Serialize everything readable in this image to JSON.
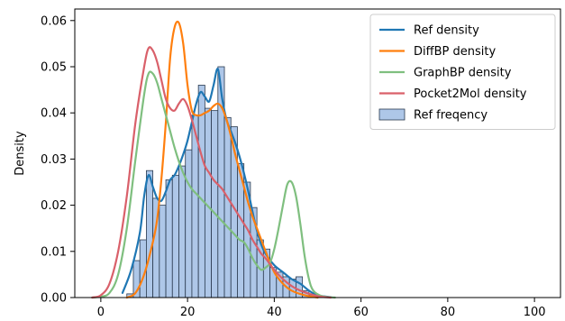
{
  "chart_data": {
    "type": "bar",
    "xlabel": "",
    "ylabel": "Density",
    "xlim": [
      -6,
      106
    ],
    "ylim": [
      0,
      0.0625
    ],
    "x_ticks": [
      0,
      20,
      40,
      60,
      80,
      100
    ],
    "y_ticks": [
      0.0,
      0.01,
      0.02,
      0.03,
      0.04,
      0.05,
      0.06
    ],
    "legend_position": "top-right",
    "histogram": {
      "name": "Ref freqency",
      "color": "#aec7e8",
      "edge_color": "#2a3a4f",
      "bins": [
        [
          6,
          7.5,
          0.0008
        ],
        [
          7.5,
          9,
          0.008
        ],
        [
          9,
          10.5,
          0.0125
        ],
        [
          10.5,
          12,
          0.0275
        ],
        [
          12,
          13.5,
          0.0215
        ],
        [
          13.5,
          15,
          0.02
        ],
        [
          15,
          16.5,
          0.0255
        ],
        [
          16.5,
          18,
          0.0265
        ],
        [
          18,
          19.5,
          0.0285
        ],
        [
          19.5,
          21,
          0.032
        ],
        [
          21,
          22.5,
          0.0395
        ],
        [
          22.5,
          24,
          0.046
        ],
        [
          24,
          25.5,
          0.041
        ],
        [
          25.5,
          27,
          0.0405
        ],
        [
          27,
          28.5,
          0.05
        ],
        [
          28.5,
          30,
          0.039
        ],
        [
          30,
          31.5,
          0.037
        ],
        [
          31.5,
          33,
          0.029
        ],
        [
          33,
          34.5,
          0.025
        ],
        [
          34.5,
          36,
          0.0195
        ],
        [
          36,
          37.5,
          0.0125
        ],
        [
          37.5,
          39,
          0.0105
        ],
        [
          39,
          40.5,
          0.0065
        ],
        [
          40.5,
          42,
          0.0055
        ],
        [
          42,
          43.5,
          0.0045
        ],
        [
          43.5,
          45,
          0.004
        ],
        [
          45,
          46.5,
          0.0045
        ],
        [
          46.5,
          48,
          0.0015
        ],
        [
          48,
          49.5,
          0.0005
        ]
      ]
    },
    "series": [
      {
        "name": "Ref density",
        "color": "#1f77b4",
        "points": [
          [
            5,
            0.001
          ],
          [
            7,
            0.006
          ],
          [
            9,
            0.014
          ],
          [
            10,
            0.022
          ],
          [
            11,
            0.0265
          ],
          [
            12,
            0.024
          ],
          [
            13,
            0.0215
          ],
          [
            14,
            0.021
          ],
          [
            15,
            0.023
          ],
          [
            16,
            0.0255
          ],
          [
            17,
            0.0265
          ],
          [
            18,
            0.0285
          ],
          [
            19,
            0.031
          ],
          [
            20,
            0.034
          ],
          [
            21,
            0.038
          ],
          [
            22,
            0.042
          ],
          [
            23,
            0.0445
          ],
          [
            24,
            0.0435
          ],
          [
            25,
            0.0425
          ],
          [
            26,
            0.046
          ],
          [
            27,
            0.0495
          ],
          [
            28,
            0.043
          ],
          [
            29,
            0.0385
          ],
          [
            30,
            0.036
          ],
          [
            31,
            0.0335
          ],
          [
            32,
            0.0305
          ],
          [
            33,
            0.027
          ],
          [
            34,
            0.023
          ],
          [
            35,
            0.0185
          ],
          [
            36,
            0.0145
          ],
          [
            37,
            0.0115
          ],
          [
            38,
            0.0095
          ],
          [
            40,
            0.007
          ],
          [
            42,
            0.0055
          ],
          [
            44,
            0.004
          ],
          [
            46,
            0.003
          ],
          [
            48,
            0.0015
          ],
          [
            50,
            0.0005
          ],
          [
            53,
            0.0001
          ]
        ]
      },
      {
        "name": "DiffBP density",
        "color": "#ff7f0e",
        "points": [
          [
            6,
            0.0
          ],
          [
            8,
            0.001
          ],
          [
            10,
            0.005
          ],
          [
            12,
            0.012
          ],
          [
            13,
            0.017
          ],
          [
            14,
            0.026
          ],
          [
            15,
            0.038
          ],
          [
            16,
            0.052
          ],
          [
            17,
            0.0585
          ],
          [
            18,
            0.0595
          ],
          [
            19,
            0.055
          ],
          [
            20,
            0.046
          ],
          [
            21,
            0.0405
          ],
          [
            22,
            0.0395
          ],
          [
            23,
            0.0395
          ],
          [
            24,
            0.04
          ],
          [
            25,
            0.0405
          ],
          [
            26,
            0.0415
          ],
          [
            27,
            0.042
          ],
          [
            28,
            0.041
          ],
          [
            29,
            0.0385
          ],
          [
            30,
            0.035
          ],
          [
            31,
            0.031
          ],
          [
            32,
            0.0275
          ],
          [
            33,
            0.024
          ],
          [
            34,
            0.0205
          ],
          [
            35,
            0.0175
          ],
          [
            36,
            0.015
          ],
          [
            37,
            0.0125
          ],
          [
            38,
            0.01
          ],
          [
            40,
            0.0055
          ],
          [
            42,
            0.003
          ],
          [
            44,
            0.0015
          ],
          [
            47,
            0.0005
          ],
          [
            50,
            0.0
          ]
        ]
      },
      {
        "name": "GraphBP density",
        "color": "#7fbf7f",
        "points": [
          [
            -2,
            0.0
          ],
          [
            0,
            0.0002
          ],
          [
            2,
            0.001
          ],
          [
            4,
            0.005
          ],
          [
            6,
            0.015
          ],
          [
            8,
            0.03
          ],
          [
            10,
            0.044
          ],
          [
            11,
            0.0485
          ],
          [
            12,
            0.0485
          ],
          [
            13,
            0.0465
          ],
          [
            14,
            0.043
          ],
          [
            15,
            0.0395
          ],
          [
            16,
            0.036
          ],
          [
            17,
            0.0325
          ],
          [
            18,
            0.0295
          ],
          [
            19,
            0.027
          ],
          [
            20,
            0.025
          ],
          [
            21,
            0.0235
          ],
          [
            22,
            0.0225
          ],
          [
            23,
            0.0215
          ],
          [
            24,
            0.0205
          ],
          [
            25,
            0.0195
          ],
          [
            26,
            0.0185
          ],
          [
            27,
            0.0175
          ],
          [
            28,
            0.0165
          ],
          [
            29,
            0.0155
          ],
          [
            30,
            0.0145
          ],
          [
            31,
            0.0135
          ],
          [
            32,
            0.0125
          ],
          [
            33,
            0.012
          ],
          [
            34,
            0.0105
          ],
          [
            35,
            0.0085
          ],
          [
            36,
            0.007
          ],
          [
            37,
            0.006
          ],
          [
            38,
            0.0065
          ],
          [
            39,
            0.0075
          ],
          [
            40,
            0.0105
          ],
          [
            41,
            0.015
          ],
          [
            42,
            0.02
          ],
          [
            43,
            0.0245
          ],
          [
            44,
            0.025
          ],
          [
            45,
            0.022
          ],
          [
            46,
            0.016
          ],
          [
            47,
            0.009
          ],
          [
            48,
            0.004
          ],
          [
            49,
            0.0015
          ],
          [
            51,
            0.0003
          ],
          [
            54,
            0.0
          ]
        ]
      },
      {
        "name": "Pocket2Mol density",
        "color": "#d9606a",
        "points": [
          [
            -2,
            0.0
          ],
          [
            0,
            0.0005
          ],
          [
            2,
            0.003
          ],
          [
            4,
            0.01
          ],
          [
            6,
            0.022
          ],
          [
            8,
            0.038
          ],
          [
            10,
            0.05
          ],
          [
            11,
            0.054
          ],
          [
            12,
            0.0535
          ],
          [
            13,
            0.051
          ],
          [
            14,
            0.047
          ],
          [
            15,
            0.043
          ],
          [
            16,
            0.041
          ],
          [
            17,
            0.0405
          ],
          [
            18,
            0.042
          ],
          [
            19,
            0.043
          ],
          [
            20,
            0.0415
          ],
          [
            21,
            0.0385
          ],
          [
            22,
            0.035
          ],
          [
            23,
            0.0315
          ],
          [
            24,
            0.0285
          ],
          [
            25,
            0.027
          ],
          [
            26,
            0.0255
          ],
          [
            27,
            0.0245
          ],
          [
            28,
            0.0235
          ],
          [
            29,
            0.022
          ],
          [
            30,
            0.0205
          ],
          [
            31,
            0.019
          ],
          [
            32,
            0.0175
          ],
          [
            33,
            0.016
          ],
          [
            34,
            0.0145
          ],
          [
            35,
            0.0125
          ],
          [
            36,
            0.011
          ],
          [
            37,
            0.0095
          ],
          [
            38,
            0.0085
          ],
          [
            40,
            0.006
          ],
          [
            42,
            0.004
          ],
          [
            44,
            0.0025
          ],
          [
            46,
            0.0015
          ],
          [
            50,
            0.0003
          ],
          [
            53,
            0.0
          ]
        ]
      }
    ],
    "legend": {
      "entries": [
        {
          "label": "Ref density",
          "kind": "line",
          "color": "#1f77b4"
        },
        {
          "label": "DiffBP density",
          "kind": "line",
          "color": "#ff7f0e"
        },
        {
          "label": "GraphBP density",
          "kind": "line",
          "color": "#7fbf7f"
        },
        {
          "label": "Pocket2Mol density",
          "kind": "line",
          "color": "#d9606a"
        },
        {
          "label": "Ref freqency",
          "kind": "patch",
          "color": "#aec7e8"
        }
      ]
    }
  }
}
